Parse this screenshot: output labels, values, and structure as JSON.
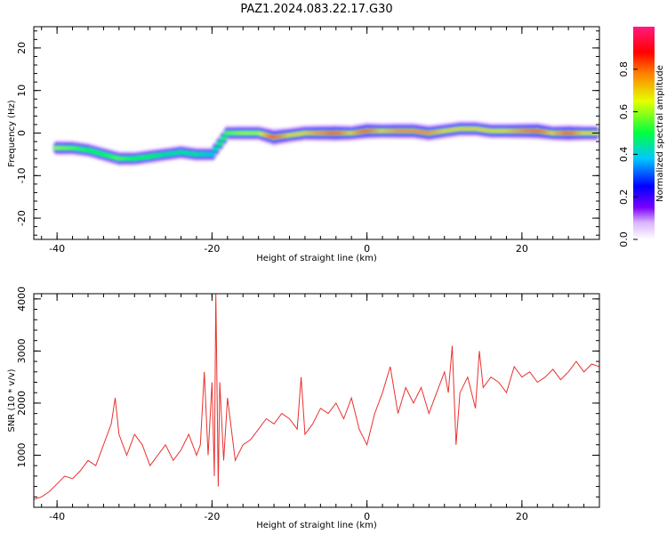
{
  "title": "PAZ1.2024.083.22.17.G30",
  "chart_data": [
    {
      "type": "heatmap",
      "name": "spectrogram",
      "xlabel": "Height of straight line (km)",
      "ylabel": "Frequency (Hz)",
      "xlim": [
        -43,
        30
      ],
      "ylim": [
        -25,
        25
      ],
      "xticks": [
        -40,
        -20,
        0,
        20
      ],
      "yticks": [
        -20,
        -10,
        0,
        10,
        20
      ],
      "colorbar": {
        "label": "Normalized spectral amplitude",
        "range": [
          0,
          1
        ],
        "ticks": [
          0.0,
          0.2,
          0.4,
          0.6,
          0.8
        ],
        "colormap": "rainbow (white-violet-blue-cyan-green-yellow-red-magenta)"
      },
      "ridge": {
        "x": [
          -40,
          -38,
          -36,
          -34,
          -32,
          -30,
          -28,
          -26,
          -24,
          -22,
          -20,
          -18,
          -16,
          -14,
          -12,
          -10,
          -8,
          -6,
          -4,
          -2,
          0,
          2,
          4,
          6,
          8,
          10,
          12,
          14,
          16,
          18,
          20,
          22,
          24,
          26,
          28,
          30
        ],
        "y": [
          -3.5,
          -3.5,
          -4,
          -5,
          -6,
          -6,
          -5.5,
          -5,
          -4.5,
          -5,
          -5,
          0,
          0,
          0,
          -1,
          -0.5,
          0,
          0,
          0,
          0,
          0.5,
          0.5,
          0.5,
          0.5,
          0,
          0.5,
          1,
          1,
          0.5,
          0.5,
          0.5,
          0.5,
          0,
          0,
          0,
          0
        ],
        "amplitude": [
          0.6,
          0.55,
          0.5,
          0.5,
          0.55,
          0.5,
          0.5,
          0.45,
          0.45,
          0.45,
          0.4,
          0.55,
          0.6,
          0.6,
          0.9,
          0.7,
          0.7,
          0.8,
          0.9,
          0.7,
          0.9,
          0.7,
          0.8,
          0.8,
          0.8,
          0.7,
          0.7,
          0.7,
          0.7,
          0.7,
          0.8,
          0.9,
          0.7,
          0.9,
          0.7,
          0.7
        ]
      }
    },
    {
      "type": "line",
      "name": "snr",
      "xlabel": "Height of straight line (km)",
      "ylabel": "SNR (10 * v/v)",
      "xlim": [
        -43,
        30
      ],
      "ylim": [
        0,
        4100
      ],
      "xticks": [
        -40,
        -20,
        0,
        20
      ],
      "yticks": [
        1000,
        2000,
        3000,
        4000
      ],
      "color": "#e8312f",
      "series": [
        {
          "x": [
            -43,
            -42,
            -41,
            -40,
            -39,
            -38,
            -37,
            -36,
            -35,
            -34,
            -33,
            -32.5,
            -32,
            -31,
            -30,
            -29,
            -28,
            -27,
            -26,
            -25,
            -24,
            -23,
            -22,
            -21.5,
            -21,
            -20.5,
            -20,
            -19.7,
            -19.5,
            -19.2,
            -19,
            -18.5,
            -18,
            -17,
            -16,
            -15,
            -14,
            -13,
            -12,
            -11,
            -10,
            -9,
            -8.5,
            -8,
            -7,
            -6,
            -5,
            -4,
            -3,
            -2,
            -1,
            0,
            1,
            2,
            3,
            4,
            5,
            6,
            7,
            8,
            9,
            10,
            10.5,
            11,
            11.5,
            12,
            13,
            14,
            14.5,
            15,
            16,
            17,
            18,
            19,
            20,
            21,
            22,
            23,
            24,
            25,
            26,
            27,
            28,
            29,
            30
          ],
          "y": [
            150,
            200,
            300,
            450,
            600,
            550,
            700,
            900,
            800,
            1200,
            1600,
            2100,
            1400,
            1000,
            1400,
            1200,
            800,
            1000,
            1200,
            900,
            1100,
            1400,
            1000,
            1200,
            2600,
            1000,
            2400,
            600,
            4100,
            400,
            2400,
            900,
            2100,
            900,
            1200,
            1300,
            1500,
            1700,
            1600,
            1800,
            1700,
            1500,
            2500,
            1400,
            1600,
            1900,
            1800,
            2000,
            1700,
            2100,
            1500,
            1200,
            1800,
            2200,
            2700,
            1800,
            2300,
            2000,
            2300,
            1800,
            2200,
            2600,
            2200,
            3100,
            1200,
            2200,
            2500,
            1900,
            3000,
            2300,
            2500,
            2400,
            2200,
            2700,
            2500,
            2600,
            2400,
            2500,
            2650,
            2450,
            2600,
            2800,
            2600,
            2750,
            2700
          ]
        }
      ]
    }
  ]
}
